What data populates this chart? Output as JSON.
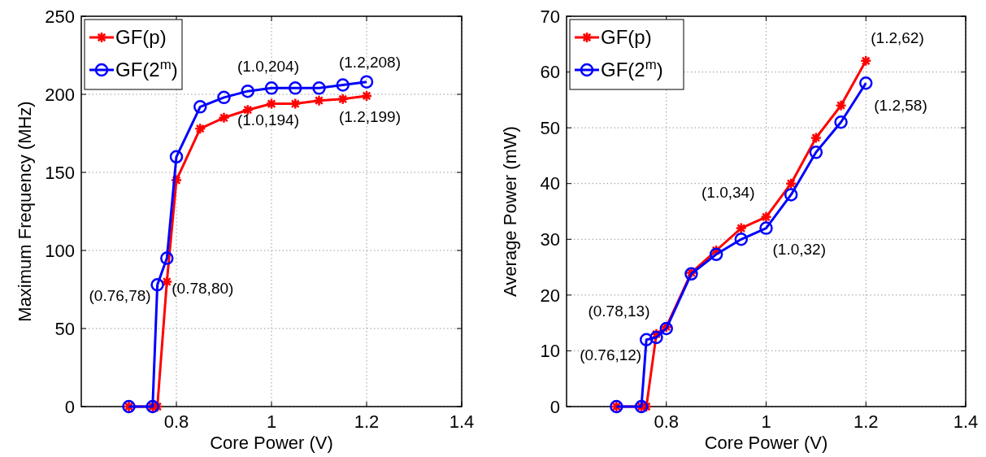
{
  "chart_data": [
    {
      "type": "line",
      "xlabel": "Core Power (V)",
      "ylabel": "Maximum Frequency (MHz)",
      "xlim": [
        0.6,
        1.4
      ],
      "ylim": [
        0,
        250
      ],
      "xticks": [
        0.8,
        1,
        1.2,
        1.4
      ],
      "yticks": [
        0,
        50,
        100,
        150,
        200,
        250
      ],
      "grid": true,
      "legend": "top left",
      "series": [
        {
          "name": "GF(p)",
          "color": "#ff0000",
          "marker": "cross",
          "x": [
            0.7,
            0.75,
            0.76,
            0.78,
            0.8,
            0.85,
            0.9,
            0.95,
            1.0,
            1.05,
            1.1,
            1.15,
            1.2
          ],
          "values": [
            0,
            0,
            0,
            80,
            145,
            178,
            185,
            190,
            194,
            194,
            196,
            197,
            199
          ]
        },
        {
          "name": "GF(2$^{m}$)",
          "color": "#0000ff",
          "marker": "circle",
          "x": [
            0.7,
            0.75,
            0.76,
            0.78,
            0.8,
            0.85,
            0.9,
            0.95,
            1.0,
            1.05,
            1.1,
            1.15,
            1.2
          ],
          "values": [
            0,
            0,
            78,
            95,
            160,
            192,
            198,
            202,
            204,
            204,
            204,
            206,
            208
          ]
        }
      ],
      "annotations": [
        {
          "text": "(0.76,78)",
          "x": 0.76,
          "y": 78
        },
        {
          "text": "(0.78,80)",
          "x": 0.78,
          "y": 80
        },
        {
          "text": "(1.0,204)",
          "x": 1.0,
          "y": 204
        },
        {
          "text": "(1.0,194)",
          "x": 1.0,
          "y": 194
        },
        {
          "text": "(1.2,208)",
          "x": 1.2,
          "y": 208
        },
        {
          "text": "(1.2,199)",
          "x": 1.2,
          "y": 199
        }
      ]
    },
    {
      "type": "line",
      "xlabel": "Core Power (V)",
      "ylabel": "Average Power (mW)",
      "xlim": [
        0.6,
        1.4
      ],
      "ylim": [
        0,
        70
      ],
      "xticks": [
        0.8,
        1,
        1.2,
        1.4
      ],
      "yticks": [
        0,
        10,
        20,
        30,
        40,
        50,
        60,
        70
      ],
      "grid": true,
      "legend": "top left",
      "series": [
        {
          "name": "GF(p)",
          "color": "#ff0000",
          "marker": "cross",
          "x": [
            0.7,
            0.75,
            0.76,
            0.78,
            0.8,
            0.85,
            0.9,
            0.95,
            1.0,
            1.05,
            1.1,
            1.15,
            1.2
          ],
          "values": [
            0,
            0,
            0,
            13,
            14.3,
            24,
            28,
            32,
            34,
            40,
            48.2,
            54,
            62
          ]
        },
        {
          "name": "GF(2$^{m}$)",
          "color": "#0000ff",
          "marker": "circle",
          "x": [
            0.7,
            0.75,
            0.76,
            0.78,
            0.8,
            0.85,
            0.9,
            0.95,
            1.0,
            1.05,
            1.1,
            1.15,
            1.2
          ],
          "values": [
            0,
            0,
            12,
            12.4,
            14,
            23.8,
            27.3,
            30,
            32,
            38,
            45.6,
            51,
            58
          ]
        }
      ],
      "annotations": [
        {
          "text": "(0.76,12)",
          "x": 0.76,
          "y": 12
        },
        {
          "text": "(0.78,13)",
          "x": 0.78,
          "y": 13
        },
        {
          "text": "(1.0,34)",
          "x": 1.0,
          "y": 34
        },
        {
          "text": "(1.0,32)",
          "x": 1.0,
          "y": 32
        },
        {
          "text": "(1.2,62)",
          "x": 1.2,
          "y": 62
        },
        {
          "text": "(1.2,58)",
          "x": 1.2,
          "y": 58
        }
      ]
    }
  ]
}
